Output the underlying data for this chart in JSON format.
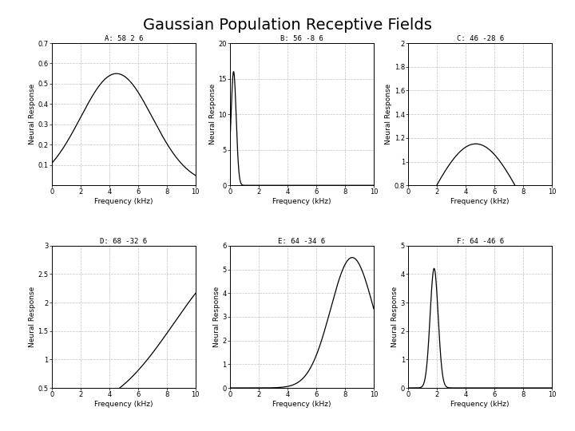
{
  "title": "Gaussian Population Receptive Fields",
  "subplots": [
    {
      "label": "A: 58 2 6",
      "mu": 4.5,
      "sigma": 2.5,
      "amp": 0.55,
      "ylim": [
        0,
        0.7
      ],
      "yticks": [
        0.1,
        0.2,
        0.3,
        0.4,
        0.5,
        0.6,
        0.7
      ],
      "yticklabels": [
        "0.1",
        "0.2",
        "0.3",
        "0.4",
        "0.5",
        "0.6",
        "0.7"
      ]
    },
    {
      "label": "B: 56 -8 6",
      "mu": 0.25,
      "sigma": 0.18,
      "amp": 16.0,
      "ylim": [
        0,
        20
      ],
      "yticks": [
        0,
        5,
        10,
        15,
        20
      ],
      "yticklabels": [
        "0",
        "5",
        "10",
        "15",
        "20"
      ]
    },
    {
      "label": "C: 46 -28 6",
      "mu": 4.7,
      "sigma": 3.2,
      "amp": 1.15,
      "ylim": [
        0.8,
        2
      ],
      "yticks": [
        0.8,
        1.0,
        1.2,
        1.4,
        1.6,
        1.8,
        2.0
      ],
      "yticklabels": [
        "0.8",
        "1",
        "1.2",
        "1.4",
        "1.6",
        "1.8",
        "2"
      ]
    },
    {
      "label": "D: 68 -32 6",
      "mu": 13.0,
      "sigma": 4.5,
      "amp": 2.7,
      "ylim": [
        0.5,
        3
      ],
      "yticks": [
        0.5,
        1.0,
        1.5,
        2.0,
        2.5,
        3.0
      ],
      "yticklabels": [
        "0.5",
        "1",
        "1.5",
        "2",
        "2.5",
        "3"
      ]
    },
    {
      "label": "E: 64 -34 6",
      "mu": 8.5,
      "sigma": 1.5,
      "amp": 5.5,
      "ylim": [
        0,
        6
      ],
      "yticks": [
        0,
        1,
        2,
        3,
        4,
        5,
        6
      ],
      "yticklabels": [
        "0",
        "1",
        "2",
        "3",
        "4",
        "5",
        "6"
      ]
    },
    {
      "label": "F: 64 -46 6",
      "mu": 1.8,
      "sigma": 0.28,
      "amp": 4.2,
      "ylim": [
        0,
        5
      ],
      "yticks": [
        0,
        1,
        2,
        3,
        4,
        5
      ],
      "yticklabels": [
        "0",
        "1",
        "2",
        "3",
        "4",
        "5"
      ]
    }
  ],
  "xlim": [
    0,
    10
  ],
  "xticks": [
    0,
    2,
    4,
    6,
    8,
    10
  ],
  "xlabel": "Frequency (kHz)",
  "ylabel": "Neural Response",
  "grid_color": "#bbbbbb",
  "line_color": "#000000",
  "bg_color": "#ffffff",
  "title_fontsize": 14,
  "subplot_title_fontsize": 6.5,
  "axis_label_fontsize": 6.5,
  "tick_fontsize": 6
}
